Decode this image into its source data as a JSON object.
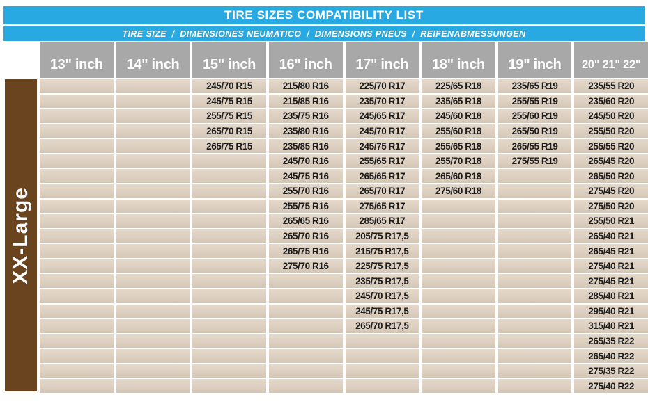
{
  "title": "TIRE SIZES COMPATIBILITY LIST",
  "subtitle": "TIRE SIZE  /  DIMENSIONES NEUMATICO  /  DIMENSIONS PNEUS  /  REIFENABMESSUNGEN",
  "sidebar": {
    "label": "XX-Large"
  },
  "columns": [
    "13\" inch",
    "14\" inch",
    "15\" inch",
    "16\" inch",
    "17\" inch",
    "18\" inch",
    "19\" inch",
    "20\" 21\" 22\""
  ],
  "rows": [
    [
      "",
      "",
      "245/70 R15",
      "215/80 R16",
      "225/70 R17",
      "225/65 R18",
      "235/65 R19",
      "235/55 R20"
    ],
    [
      "",
      "",
      "245/75 R15",
      "215/85 R16",
      "235/70 R17",
      "235/65 R18",
      "255/55 R19",
      "235/60 R20"
    ],
    [
      "",
      "",
      "255/75 R15",
      "235/75 R16",
      "245/65 R17",
      "245/60 R18",
      "255/60 R19",
      "245/50 R20"
    ],
    [
      "",
      "",
      "265/70 R15",
      "235/80 R16",
      "245/70 R17",
      "255/60 R18",
      "265/50 R19",
      "255/50 R20"
    ],
    [
      "",
      "",
      "265/75 R15",
      "235/85 R16",
      "245/75 R17",
      "255/65 R18",
      "265/55 R19",
      "255/55 R20"
    ],
    [
      "",
      "",
      "",
      "245/70 R16",
      "255/65 R17",
      "255/70 R18",
      "275/55 R19",
      "265/45 R20"
    ],
    [
      "",
      "",
      "",
      "245/75 R16",
      "265/65 R17",
      "265/60 R18",
      "",
      "265/50 R20"
    ],
    [
      "",
      "",
      "",
      "255/70 R16",
      "265/70 R17",
      "275/60 R18",
      "",
      "275/45 R20"
    ],
    [
      "",
      "",
      "",
      "255/75 R16",
      "275/65 R17",
      "",
      "",
      "275/50 R20"
    ],
    [
      "",
      "",
      "",
      "265/65 R16",
      "285/65 R17",
      "",
      "",
      "255/50 R21"
    ],
    [
      "",
      "",
      "",
      "265/70 R16",
      "205/75 R17,5",
      "",
      "",
      "265/40 R21"
    ],
    [
      "",
      "",
      "",
      "265/75 R16",
      "215/75 R17,5",
      "",
      "",
      "265/45 R21"
    ],
    [
      "",
      "",
      "",
      "275/70 R16",
      "225/75 R17,5",
      "",
      "",
      "275/40 R21"
    ],
    [
      "",
      "",
      "",
      "",
      "235/75 R17,5",
      "",
      "",
      "275/45 R21"
    ],
    [
      "",
      "",
      "",
      "",
      "245/70 R17,5",
      "",
      "",
      "285/40 R21"
    ],
    [
      "",
      "",
      "",
      "",
      "245/75 R17,5",
      "",
      "",
      "295/40 R21"
    ],
    [
      "",
      "",
      "",
      "",
      "265/70 R17,5",
      "",
      "",
      "315/40 R21"
    ],
    [
      "",
      "",
      "",
      "",
      "",
      "",
      "",
      "265/35 R22"
    ],
    [
      "",
      "",
      "",
      "",
      "",
      "",
      "",
      "265/40 R22"
    ],
    [
      "",
      "",
      "",
      "",
      "",
      "",
      "",
      "275/35 R22"
    ],
    [
      "",
      "",
      "",
      "",
      "",
      "",
      "",
      "275/40 R22"
    ]
  ],
  "colors": {
    "accent_blue": "#29a9e1",
    "header_gray": "#a8a8a8",
    "cell_tan": "#ddd0c1",
    "sidebar_brown": "#6a431f",
    "cell_text": "#1c1c1c"
  }
}
